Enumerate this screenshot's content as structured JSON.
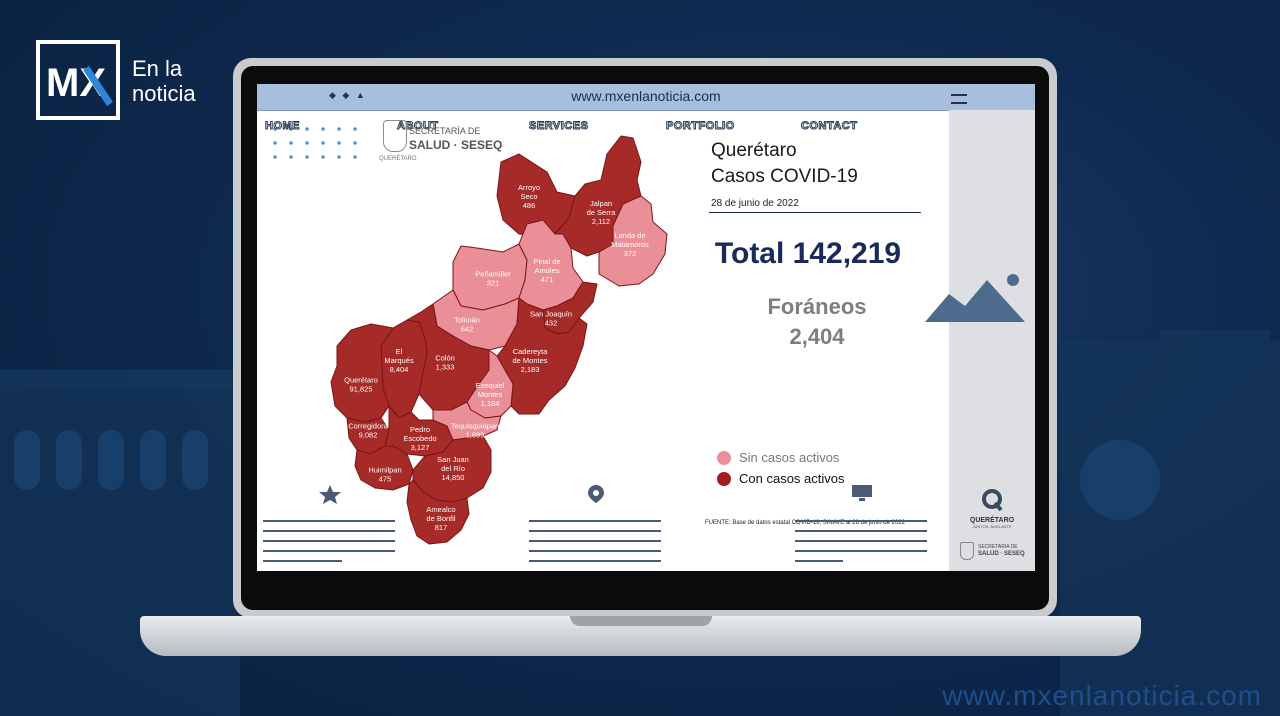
{
  "brand": {
    "logo_text": "MX",
    "line1": "En la",
    "line2": "noticia"
  },
  "footer_url": "www.mxenlanoticia.com",
  "browser": {
    "url": "www.mxenlanoticia.com"
  },
  "nav": {
    "items": [
      "HOME",
      "ABOUT",
      "SERVICES",
      "PORTFOLIO",
      "CONTACT"
    ]
  },
  "seseq": {
    "line1": "SECRETARÍA DE",
    "line2": "SALUD · SESEQ",
    "line3": "QUERÉTARO"
  },
  "infographic": {
    "title_line1": "Querétaro",
    "title_line2": "Casos COVID-19",
    "date": "28 de junio de 2022",
    "total": "Total 142,219",
    "foraneos_label": "Foráneos",
    "foraneos_value": "2,404",
    "legend": [
      {
        "label": "Sin casos activos",
        "color": "#e8919b"
      },
      {
        "label": "Con casos activos",
        "color": "#a61d1d"
      }
    ],
    "source": "FUENTE: Base de datos estatal COVID-19, SINAVE al 28 de junio de 2022"
  },
  "map": {
    "colors": {
      "active": "#a62a27",
      "inactive": "#ea8e98",
      "border": "#7a1515"
    },
    "municipalities": [
      {
        "id": "arroyo-seco",
        "name": [
          "Arroyo",
          "Seco"
        ],
        "cases": "486",
        "active": true
      },
      {
        "id": "jalpan",
        "name": [
          "Jalpan",
          "de Serra"
        ],
        "cases": "2,112",
        "active": true
      },
      {
        "id": "landa",
        "name": [
          "Landa de",
          "Matamoros"
        ],
        "cases": "372",
        "active": false
      },
      {
        "id": "penamiller",
        "name": [
          "Peñamiller"
        ],
        "cases": "321",
        "active": false
      },
      {
        "id": "pinal",
        "name": [
          "Pinal de",
          "Amoles"
        ],
        "cases": "471",
        "active": false
      },
      {
        "id": "san-joaquin",
        "name": [
          "San Joaquín"
        ],
        "cases": "432",
        "active": true
      },
      {
        "id": "toliman",
        "name": [
          "Tolimán"
        ],
        "cases": "642",
        "active": false
      },
      {
        "id": "cadereyta",
        "name": [
          "Cadereyta",
          "de Montes"
        ],
        "cases": "2,183",
        "active": true
      },
      {
        "id": "el-marques",
        "name": [
          "El",
          "Marqués"
        ],
        "cases": "8,404",
        "active": true
      },
      {
        "id": "colon",
        "name": [
          "Colón"
        ],
        "cases": "1,333",
        "active": true
      },
      {
        "id": "queretaro",
        "name": [
          "Querétaro"
        ],
        "cases": "91,825",
        "active": true
      },
      {
        "id": "ezequiel-montes",
        "name": [
          "Ezequiel",
          "Montes"
        ],
        "cases": "1,184",
        "active": false
      },
      {
        "id": "corregidora",
        "name": [
          "Corregidora"
        ],
        "cases": "9,082",
        "active": true
      },
      {
        "id": "pedro-escobedo",
        "name": [
          "Pedro",
          "Escobedo"
        ],
        "cases": "3,127",
        "active": true
      },
      {
        "id": "tequisquiapan",
        "name": [
          "Tequisquiapan"
        ],
        "cases": "1,699",
        "active": false
      },
      {
        "id": "huimilpan",
        "name": [
          "Huimilpan"
        ],
        "cases": "475",
        "active": true
      },
      {
        "id": "san-juan-del-rio",
        "name": [
          "San Juan",
          "del Río"
        ],
        "cases": "14,850",
        "active": true
      },
      {
        "id": "amealco",
        "name": [
          "Amealco",
          "de Bonfil"
        ],
        "cases": "817",
        "active": true
      }
    ]
  },
  "side": {
    "qro_text": "QUERÉTARO",
    "qro_sub": "JUNTOS, ADELANTE",
    "seseq_small_1": "SECRETARÍA DE",
    "seseq_small_2": "SALUD · SESEQ"
  }
}
